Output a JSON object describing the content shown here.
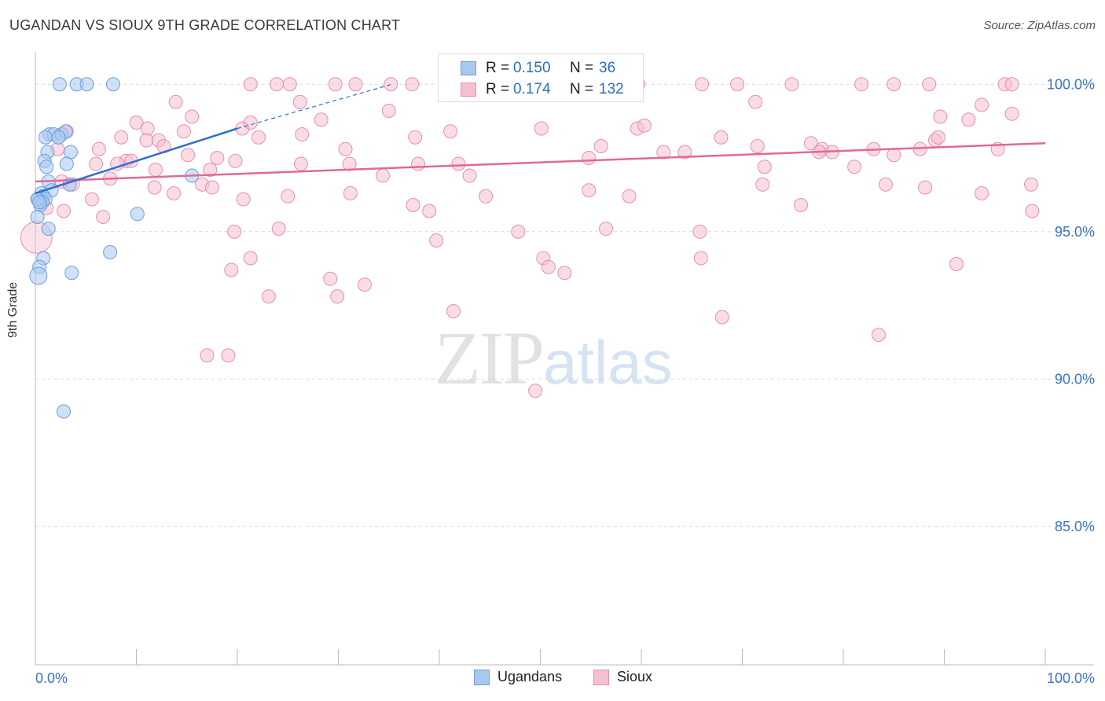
{
  "title": "UGANDAN VS SIOUX 9TH GRADE CORRELATION CHART",
  "source": "Source: ZipAtlas.com",
  "colors": {
    "ugandans_fill": "#a9c8f0",
    "ugandans_stroke": "#6e9fdc",
    "ugandans_line": "#2f6fcf",
    "sioux_fill": "#f6bfd1",
    "sioux_stroke": "#e88fb0",
    "sioux_line": "#e26898",
    "axis_text": "#3b73c5",
    "grid": "#d9d9d9"
  },
  "legend": {
    "rows": [
      {
        "r_label": "R =",
        "r_value": "0.150",
        "n_label": "N =",
        "n_value": "36"
      },
      {
        "r_label": "R =",
        "r_value": "0.174",
        "n_label": "N =",
        "n_value": "132"
      }
    ],
    "bottom": [
      "Ugandans",
      "Sioux"
    ]
  },
  "watermark": {
    "zip": "ZIP",
    "atlas": "atlas"
  },
  "chart_data": {
    "type": "scatter",
    "title": "UGANDAN VS SIOUX 9TH GRADE CORRELATION CHART",
    "xlabel": "",
    "ylabel": "9th Grade",
    "xlim": [
      0,
      100
    ],
    "ylim": [
      80.3,
      101.1
    ],
    "x_tick_labels": [
      "0.0%",
      "100.0%"
    ],
    "y_ticks": [
      {
        "value": 100,
        "label": "100.0%"
      },
      {
        "value": 95,
        "label": "95.0%"
      },
      {
        "value": 90,
        "label": "90.0%"
      },
      {
        "value": 85,
        "label": "85.0%"
      }
    ],
    "series": [
      {
        "name": "Ugandans",
        "R": 0.15,
        "N": 36,
        "trend": {
          "x0": 0,
          "y0": 96.3,
          "x1": 20,
          "y1": 98.5,
          "dash_to_x": 35.3,
          "dash_to_y": 100.0
        },
        "points": [
          [
            2.4,
            100
          ],
          [
            4.1,
            100
          ],
          [
            5.1,
            100
          ],
          [
            7.7,
            100
          ],
          [
            1.4,
            98.3
          ],
          [
            1.8,
            98.3
          ],
          [
            2.6,
            98.3
          ],
          [
            3.0,
            98.4
          ],
          [
            1.0,
            98.2
          ],
          [
            2.3,
            98.2
          ],
          [
            1.2,
            97.7
          ],
          [
            3.5,
            97.7
          ],
          [
            0.9,
            97.4
          ],
          [
            1.1,
            97.2
          ],
          [
            3.1,
            97.3
          ],
          [
            1.3,
            96.7
          ],
          [
            0.6,
            96.3
          ],
          [
            1.6,
            96.4
          ],
          [
            0.8,
            96.2
          ],
          [
            0.3,
            96.1
          ],
          [
            1.0,
            96.1
          ],
          [
            0.7,
            96.0
          ],
          [
            0.5,
            95.9
          ],
          [
            3.4,
            96.6
          ],
          [
            0.2,
            95.5
          ],
          [
            1.3,
            95.1
          ],
          [
            10.1,
            95.6
          ],
          [
            7.4,
            94.3
          ],
          [
            0.8,
            94.1
          ],
          [
            0.4,
            93.8
          ],
          [
            3.6,
            93.6
          ],
          [
            0.3,
            93.5
          ],
          [
            15.5,
            96.9
          ],
          [
            0.2,
            96.1
          ],
          [
            0.4,
            96.0
          ],
          [
            2.8,
            88.9
          ]
        ]
      },
      {
        "name": "Sioux",
        "R": 0.174,
        "N": 132,
        "trend": {
          "x0": 0,
          "y0": 96.7,
          "x1": 100,
          "y1": 98.0
        },
        "points": [
          [
            21.3,
            100
          ],
          [
            23.9,
            100
          ],
          [
            29.7,
            100
          ],
          [
            31.7,
            100
          ],
          [
            35.2,
            100
          ],
          [
            48.7,
            100
          ],
          [
            51.6,
            100
          ],
          [
            55.4,
            100
          ],
          [
            56.5,
            100
          ],
          [
            59.7,
            100
          ],
          [
            66.0,
            100
          ],
          [
            69.5,
            100
          ],
          [
            74.9,
            100
          ],
          [
            81.8,
            100
          ],
          [
            85.0,
            100
          ],
          [
            88.5,
            100
          ],
          [
            96.0,
            100
          ],
          [
            96.7,
            100
          ],
          [
            37.3,
            100
          ],
          [
            25.2,
            100
          ],
          [
            13.9,
            99.4
          ],
          [
            26.2,
            99.4
          ],
          [
            15.5,
            98.9
          ],
          [
            10.0,
            98.7
          ],
          [
            11.1,
            98.5
          ],
          [
            20.5,
            98.5
          ],
          [
            21.3,
            98.7
          ],
          [
            28.3,
            98.8
          ],
          [
            35.0,
            99.1
          ],
          [
            41.1,
            98.4
          ],
          [
            50.1,
            98.5
          ],
          [
            59.6,
            98.5
          ],
          [
            60.3,
            98.6
          ],
          [
            71.3,
            99.4
          ],
          [
            89.6,
            98.9
          ],
          [
            92.4,
            98.8
          ],
          [
            93.7,
            99.3
          ],
          [
            96.7,
            99.0
          ],
          [
            3.1,
            98.4
          ],
          [
            11.0,
            98.1
          ],
          [
            12.2,
            98.1
          ],
          [
            14.7,
            98.4
          ],
          [
            8.5,
            98.2
          ],
          [
            6.3,
            97.8
          ],
          [
            12.7,
            97.9
          ],
          [
            15.1,
            97.6
          ],
          [
            9.0,
            97.4
          ],
          [
            18.0,
            97.5
          ],
          [
            22.1,
            98.2
          ],
          [
            26.4,
            98.3
          ],
          [
            30.7,
            97.8
          ],
          [
            37.6,
            98.2
          ],
          [
            56.0,
            97.9
          ],
          [
            62.2,
            97.7
          ],
          [
            67.9,
            98.2
          ],
          [
            71.5,
            97.9
          ],
          [
            76.8,
            98.0
          ],
          [
            77.9,
            97.8
          ],
          [
            83.0,
            97.8
          ],
          [
            87.6,
            97.8
          ],
          [
            89.1,
            98.1
          ],
          [
            89.4,
            98.2
          ],
          [
            95.3,
            97.8
          ],
          [
            2.2,
            97.8
          ],
          [
            6.0,
            97.3
          ],
          [
            9.5,
            97.4
          ],
          [
            8.1,
            97.3
          ],
          [
            11.9,
            97.1
          ],
          [
            17.3,
            97.1
          ],
          [
            19.8,
            97.4
          ],
          [
            26.3,
            97.3
          ],
          [
            31.1,
            97.3
          ],
          [
            34.4,
            96.9
          ],
          [
            37.9,
            97.3
          ],
          [
            41.9,
            97.3
          ],
          [
            43.0,
            96.9
          ],
          [
            54.8,
            97.5
          ],
          [
            64.3,
            97.7
          ],
          [
            72.2,
            97.2
          ],
          [
            77.6,
            97.7
          ],
          [
            78.9,
            97.7
          ],
          [
            81.1,
            97.2
          ],
          [
            85.0,
            97.6
          ],
          [
            88.1,
            96.5
          ],
          [
            98.6,
            96.6
          ],
          [
            2.6,
            96.7
          ],
          [
            3.7,
            96.6
          ],
          [
            7.4,
            96.8
          ],
          [
            5.6,
            96.1
          ],
          [
            11.8,
            96.5
          ],
          [
            13.7,
            96.3
          ],
          [
            16.5,
            96.6
          ],
          [
            17.5,
            96.5
          ],
          [
            20.6,
            96.1
          ],
          [
            25.0,
            96.2
          ],
          [
            31.2,
            96.3
          ],
          [
            37.4,
            95.9
          ],
          [
            44.6,
            96.2
          ],
          [
            54.8,
            96.4
          ],
          [
            58.8,
            96.2
          ],
          [
            72.0,
            96.6
          ],
          [
            75.8,
            95.9
          ],
          [
            84.2,
            96.6
          ],
          [
            93.7,
            96.3
          ],
          [
            98.7,
            95.7
          ],
          [
            1.1,
            95.8
          ],
          [
            2.8,
            95.7
          ],
          [
            6.7,
            95.5
          ],
          [
            19.7,
            95.0
          ],
          [
            24.1,
            95.1
          ],
          [
            39.0,
            95.7
          ],
          [
            39.7,
            94.7
          ],
          [
            50.3,
            94.1
          ],
          [
            50.8,
            93.8
          ],
          [
            56.5,
            95.1
          ],
          [
            65.9,
            94.1
          ],
          [
            91.2,
            93.9
          ],
          [
            19.4,
            93.7
          ],
          [
            21.3,
            94.1
          ],
          [
            23.1,
            92.8
          ],
          [
            29.2,
            93.4
          ],
          [
            29.9,
            92.8
          ],
          [
            32.6,
            93.2
          ],
          [
            41.4,
            92.3
          ],
          [
            52.4,
            93.6
          ],
          [
            65.8,
            95.0
          ],
          [
            68.0,
            92.1
          ],
          [
            83.5,
            91.5
          ],
          [
            17.0,
            90.8
          ],
          [
            19.1,
            90.8
          ],
          [
            49.5,
            89.6
          ],
          [
            47.8,
            95.0
          ]
        ]
      }
    ]
  }
}
